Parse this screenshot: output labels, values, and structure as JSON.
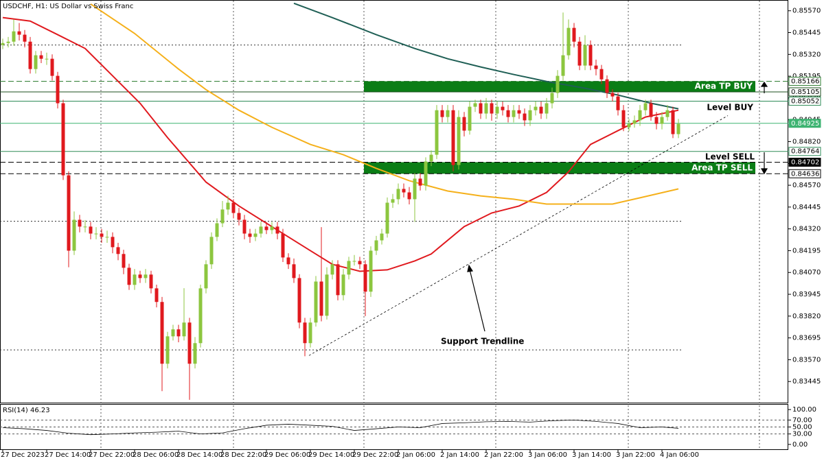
{
  "chart_data": {
    "type": "candlestick",
    "title": "USDCHF, H1:  US Dollar vs Swiss Franc",
    "up_color": "#8cc63f",
    "down_color": "#e0191e",
    "categories": [
      "27 Dec 2023",
      null,
      null,
      null,
      null,
      null,
      null,
      null,
      "27 Dec 14:00",
      null,
      null,
      null,
      null,
      null,
      null,
      null,
      "27 Dec 22:00",
      null,
      null,
      null,
      null,
      null,
      null,
      null,
      "28 Dec 06:00",
      null,
      null,
      null,
      null,
      null,
      null,
      null,
      "28 Dec 14:00",
      null,
      null,
      null,
      null,
      null,
      null,
      null,
      "28 Dec 22:00",
      null,
      null,
      null,
      null,
      null,
      null,
      null,
      "29 Dec 06:00",
      null,
      null,
      null,
      null,
      null,
      null,
      null,
      "29 Dec 14:00",
      null,
      null,
      null,
      null,
      null,
      null,
      null,
      "29 Dec 22:00",
      null,
      null,
      null,
      null,
      null,
      null,
      null,
      "2 Jan 06:00",
      null,
      null,
      null,
      null,
      null,
      null,
      null,
      "2 Jan 14:00",
      null,
      null,
      null,
      null,
      null,
      null,
      null,
      "2 Jan 22:00",
      null,
      null,
      null,
      null,
      null,
      null,
      null,
      "3 Jan 06:00",
      null,
      null,
      null,
      null,
      null,
      null,
      null,
      "3 Jan 14:00",
      null,
      null,
      null,
      null,
      null,
      null,
      null,
      "3 Jan 22:00",
      null,
      null,
      null,
      null,
      null,
      null,
      null,
      "4 Jan 06:00",
      null,
      null,
      null
    ],
    "open": [
      0.85374,
      0.85385,
      0.85393,
      0.85452,
      0.85433,
      0.85393,
      0.85236,
      0.85315,
      0.85295,
      0.85295,
      0.85197,
      0.8504,
      0.84627,
      0.84195,
      0.84372,
      0.84333,
      0.84333,
      0.84293,
      0.84293,
      0.84274,
      0.84274,
      0.84215,
      0.84176,
      0.84097,
      0.83999,
      0.84058,
      0.84038,
      0.84058,
      0.83979,
      0.83901,
      0.83547,
      0.83704,
      0.83744,
      0.83704,
      0.83783,
      0.83547,
      0.83665,
      0.83979,
      0.84117,
      0.84274,
      0.84352,
      0.84431,
      0.8447,
      0.84411,
      0.84372,
      0.84293,
      0.84274,
      0.84293,
      0.84333,
      0.84313,
      0.84333,
      0.84293,
      0.84156,
      0.84117,
      0.84038,
      0.83783,
      0.83665,
      0.83783,
      0.84018,
      0.83822,
      0.84058,
      0.84117,
      0.8394,
      0.84058,
      0.84136,
      0.84136,
      0.84117,
      0.8396,
      0.84195,
      0.84254,
      0.84293,
      0.8447,
      0.8449,
      0.84549,
      0.84529,
      0.8449,
      0.84608,
      0.84568,
      0.84706,
      0.84745,
      0.85,
      0.84961,
      0.85,
      0.84686,
      0.84961,
      0.84883,
      0.8502,
      0.8504,
      0.84981,
      0.8504,
      0.84981,
      0.8502,
      0.85,
      0.84961,
      0.85,
      0.84981,
      0.84942,
      0.85,
      0.8502,
      0.84981,
      0.8504,
      0.85099,
      0.85197,
      0.85315,
      0.85472,
      0.85393,
      0.85256,
      0.85374,
      0.85256,
      0.85236,
      0.85177,
      0.85099,
      0.85079,
      0.85,
      0.84902,
      0.84922,
      0.84942,
      0.85,
      0.8504,
      0.84961,
      0.84922,
      0.84961,
      0.85,
      0.84863
    ],
    "high": [
      0.8541,
      0.8542,
      0.8552,
      0.855,
      0.8546,
      0.8542,
      0.8534,
      0.8534,
      0.8533,
      0.8532,
      0.8522,
      0.8506,
      0.8465,
      0.8442,
      0.844,
      0.8437,
      0.8436,
      0.8433,
      0.8432,
      0.8431,
      0.843,
      0.8424,
      0.842,
      0.8412,
      0.8409,
      0.8408,
      0.8409,
      0.8408,
      0.84,
      0.8393,
      0.8373,
      0.8377,
      0.8377,
      0.8398,
      0.8381,
      0.837,
      0.84,
      0.8414,
      0.843,
      0.8438,
      0.8448,
      0.8451,
      0.8449,
      0.8444,
      0.844,
      0.8432,
      0.8432,
      0.8436,
      0.8436,
      0.8436,
      0.8436,
      0.8432,
      0.8418,
      0.8415,
      0.8406,
      0.8381,
      0.8381,
      0.8405,
      0.8433,
      0.841,
      0.8414,
      0.8414,
      0.8409,
      0.8416,
      0.8417,
      0.8416,
      0.8414,
      0.8422,
      0.8428,
      0.8432,
      0.845,
      0.8452,
      0.8458,
      0.8458,
      0.8456,
      0.8464,
      0.8464,
      0.8473,
      0.8477,
      0.8503,
      0.8503,
      0.8503,
      0.8503,
      0.85,
      0.8499,
      0.8505,
      0.8506,
      0.8506,
      0.8507,
      0.8506,
      0.8505,
      0.8505,
      0.8503,
      0.8503,
      0.8503,
      0.8501,
      0.8503,
      0.8505,
      0.8505,
      0.8507,
      0.8513,
      0.8523,
      0.8556,
      0.8552,
      0.855,
      0.8542,
      0.8543,
      0.854,
      0.8529,
      0.8526,
      0.852,
      0.8512,
      0.851,
      0.8503,
      0.8495,
      0.8497,
      0.8503,
      0.8506,
      0.8506,
      0.8499,
      0.8499,
      0.8503,
      0.8502,
      0.8495
    ],
    "low": [
      0.8535,
      0.8536,
      0.8537,
      0.854,
      0.8536,
      0.8521,
      0.8521,
      0.8527,
      0.8526,
      0.8517,
      0.8501,
      0.846,
      0.841,
      0.8417,
      0.843,
      0.843,
      0.8426,
      0.8426,
      0.8424,
      0.8424,
      0.8418,
      0.8414,
      0.8406,
      0.8397,
      0.8397,
      0.8401,
      0.8401,
      0.8395,
      0.8387,
      0.8339,
      0.8352,
      0.8368,
      0.8367,
      0.8368,
      0.8334,
      0.8352,
      0.8364,
      0.8395,
      0.8409,
      0.8425,
      0.8433,
      0.844,
      0.8438,
      0.8434,
      0.8426,
      0.8424,
      0.8425,
      0.8427,
      0.8429,
      0.8429,
      0.8426,
      0.8413,
      0.8409,
      0.8401,
      0.8375,
      0.8359,
      0.8364,
      0.8376,
      0.8379,
      0.838,
      0.8403,
      0.8391,
      0.8391,
      0.8403,
      0.8411,
      0.8409,
      0.8382,
      0.8393,
      0.8417,
      0.8423,
      0.8427,
      0.8444,
      0.8446,
      0.845,
      0.8446,
      0.8436,
      0.8454,
      0.8454,
      0.8468,
      0.8472,
      0.8493,
      0.8493,
      0.8465,
      0.8466,
      0.8485,
      0.8486,
      0.8499,
      0.8495,
      0.8495,
      0.8494,
      0.8495,
      0.8497,
      0.8493,
      0.8493,
      0.8495,
      0.8491,
      0.8491,
      0.8497,
      0.8495,
      0.8495,
      0.8501,
      0.8507,
      0.8517,
      0.8529,
      0.8536,
      0.8523,
      0.8523,
      0.8523,
      0.852,
      0.8515,
      0.8507,
      0.8505,
      0.8497,
      0.8488,
      0.8488,
      0.849,
      0.8491,
      0.8497,
      0.8494,
      0.8489,
      0.8489,
      0.8494,
      0.8484,
      0.8484
    ],
    "close": [
      0.85385,
      0.85393,
      0.85452,
      0.85433,
      0.85393,
      0.85236,
      0.85315,
      0.85295,
      0.85295,
      0.85197,
      0.8504,
      0.84627,
      0.84195,
      0.84372,
      0.84333,
      0.84333,
      0.84293,
      0.84293,
      0.84274,
      0.84274,
      0.84215,
      0.84176,
      0.84097,
      0.83999,
      0.84058,
      0.84038,
      0.84058,
      0.83979,
      0.83901,
      0.83547,
      0.83704,
      0.83744,
      0.83704,
      0.83783,
      0.83547,
      0.83665,
      0.83979,
      0.84117,
      0.84274,
      0.84352,
      0.84431,
      0.8447,
      0.84411,
      0.84372,
      0.84293,
      0.84274,
      0.84293,
      0.84333,
      0.84313,
      0.84333,
      0.84293,
      0.84156,
      0.84117,
      0.84038,
      0.83783,
      0.83665,
      0.83783,
      0.84018,
      0.83822,
      0.84058,
      0.84117,
      0.8394,
      0.84058,
      0.84136,
      0.84136,
      0.84117,
      0.8396,
      0.84195,
      0.84254,
      0.84293,
      0.8447,
      0.8449,
      0.84549,
      0.84529,
      0.8449,
      0.84608,
      0.84568,
      0.84706,
      0.84745,
      0.85,
      0.84961,
      0.85,
      0.84686,
      0.84961,
      0.84883,
      0.8502,
      0.8504,
      0.84981,
      0.8504,
      0.84981,
      0.8502,
      0.85,
      0.84961,
      0.85,
      0.84981,
      0.84942,
      0.85,
      0.8502,
      0.84981,
      0.8504,
      0.85099,
      0.85197,
      0.85315,
      0.85472,
      0.85393,
      0.85256,
      0.85374,
      0.85256,
      0.85236,
      0.85177,
      0.85099,
      0.85079,
      0.85,
      0.84902,
      0.84922,
      0.84942,
      0.85,
      0.8504,
      0.84961,
      0.84922,
      0.84961,
      0.85,
      0.84863,
      0.84922
    ],
    "xlim": [
      -0.5,
      143
    ],
    "ylim": [
      0.8332,
      0.8562
    ],
    "yticks": [
      {
        "value": 0.8557,
        "label": "0.85570"
      },
      {
        "value": 0.85445,
        "label": "0.85445"
      },
      {
        "value": 0.8532,
        "label": "0.85320"
      },
      {
        "value": 0.85195,
        "label": "0.85195"
      },
      {
        "value": 0.8507,
        "label": "0.85070"
      },
      {
        "value": 0.84945,
        "label": "0.84945"
      },
      {
        "value": 0.8482,
        "label": "0.84820"
      },
      {
        "value": 0.84695,
        "label": "0.84695"
      },
      {
        "value": 0.8457,
        "label": "0.84570"
      },
      {
        "value": 0.84445,
        "label": "0.84445"
      },
      {
        "value": 0.8432,
        "label": "0.84320"
      },
      {
        "value": 0.84195,
        "label": "0.84195"
      },
      {
        "value": 0.8407,
        "label": "0.84070"
      },
      {
        "value": 0.83945,
        "label": "0.83945"
      },
      {
        "value": 0.8382,
        "label": "0.83820"
      },
      {
        "value": 0.83695,
        "label": "0.83695"
      },
      {
        "value": 0.8357,
        "label": "0.83570"
      },
      {
        "value": 0.83445,
        "label": "0.83445"
      }
    ],
    "moving_averages": [
      {
        "color": "#e0191e",
        "x": [
          0,
          5,
          10,
          15,
          20,
          25,
          30,
          37,
          43,
          50,
          56,
          60,
          65,
          70,
          75,
          78,
          84,
          89,
          94,
          99,
          103,
          107,
          112,
          117,
          123
        ],
        "values": [
          0.85531,
          0.85511,
          0.85433,
          0.85354,
          0.85197,
          0.8504,
          0.84843,
          0.84588,
          0.84451,
          0.84313,
          0.84195,
          0.84117,
          0.84077,
          0.84085,
          0.84136,
          0.84176,
          0.84333,
          0.84411,
          0.84451,
          0.84529,
          0.84647,
          0.84804,
          0.84883,
          0.84961,
          0.85
        ]
      },
      {
        "color": "#f5b01a",
        "x": [
          16,
          24,
          32,
          37,
          43,
          49,
          56,
          62,
          68,
          74,
          81,
          87,
          93,
          99,
          106,
          111,
          116,
          123
        ],
        "values": [
          0.85609,
          0.8544,
          0.85236,
          0.85118,
          0.85,
          0.84902,
          0.84804,
          0.84745,
          0.84667,
          0.84596,
          0.84537,
          0.84509,
          0.8449,
          0.84462,
          0.84462,
          0.84462,
          0.84498,
          0.84549
        ]
      },
      {
        "color": "#1f5f55",
        "x": [
          53,
          60,
          68,
          75,
          81,
          87,
          93,
          99,
          106,
          112,
          118,
          123
        ],
        "values": [
          0.85613,
          0.85531,
          0.85433,
          0.85354,
          0.85295,
          0.85248,
          0.85205,
          0.85165,
          0.85126,
          0.85087,
          0.8504,
          0.85008
        ]
      }
    ],
    "levels": [
      {
        "value": 0.85166,
        "color": "#2e7d32",
        "dash": true,
        "box": "#ffffff"
      },
      {
        "value": 0.85105,
        "color": "#1b4d1e",
        "dash": false,
        "box": "#ffffff"
      },
      {
        "value": 0.85052,
        "color": "#2e8b57",
        "dash": false,
        "box": "#ffffff"
      },
      {
        "value": 0.84925,
        "color": "#3cb371",
        "dash": false,
        "box": "#3cb371"
      },
      {
        "value": 0.84764,
        "color": "#2e8b57",
        "dash": false,
        "box": "#ffffff"
      },
      {
        "value": 0.84702,
        "color": "#000000",
        "dash": true,
        "box": "#000000"
      },
      {
        "value": 0.84636,
        "color": "#000000",
        "dash": true,
        "box": "#ffffff"
      }
    ],
    "dotted_levels": [
      0.85374,
      0.84364,
      0.83626
    ],
    "zones": [
      {
        "label": "Area TP BUY",
        "top": 0.85166,
        "bottom": 0.85105,
        "x": [
          65.75,
          137
        ],
        "color": "#0b7d16"
      },
      {
        "label": "Area TP SELL",
        "top": 0.84702,
        "bottom": 0.84636,
        "x": [
          65.75,
          137
        ],
        "color": "#0b7d16"
      }
    ],
    "trendline": {
      "x": [
        55.75,
        132
      ],
      "values": [
        0.83594,
        0.84969
      ]
    },
    "annotations": [
      "Level BUY",
      "Level SELL",
      "Support Trendline"
    ],
    "rsi": {
      "title": "RSI(14) 46.23",
      "x": [
        0,
        4,
        8,
        12,
        16,
        20,
        24,
        28,
        32,
        36,
        40,
        44,
        48,
        52,
        56,
        60,
        64,
        68,
        72,
        76,
        80,
        84,
        88,
        92,
        96,
        100,
        104,
        108,
        112,
        116,
        120,
        123
      ],
      "values": [
        48,
        45,
        40,
        32,
        28,
        30,
        33,
        35,
        38,
        30,
        33,
        45,
        55,
        58,
        55,
        52,
        40,
        45,
        50,
        48,
        60,
        62,
        65,
        66,
        64,
        68,
        70,
        66,
        60,
        48,
        50,
        46.23
      ],
      "ylim": [
        -14,
        114
      ],
      "yticks": [
        {
          "value": 100,
          "label": "100.00"
        },
        {
          "value": 70,
          "label": "70.00"
        },
        {
          "value": 50,
          "label": "50.00"
        },
        {
          "value": 30,
          "label": "30.00"
        },
        {
          "value": 0,
          "label": "0.00"
        }
      ],
      "grid": [
        70,
        50,
        30
      ]
    }
  }
}
